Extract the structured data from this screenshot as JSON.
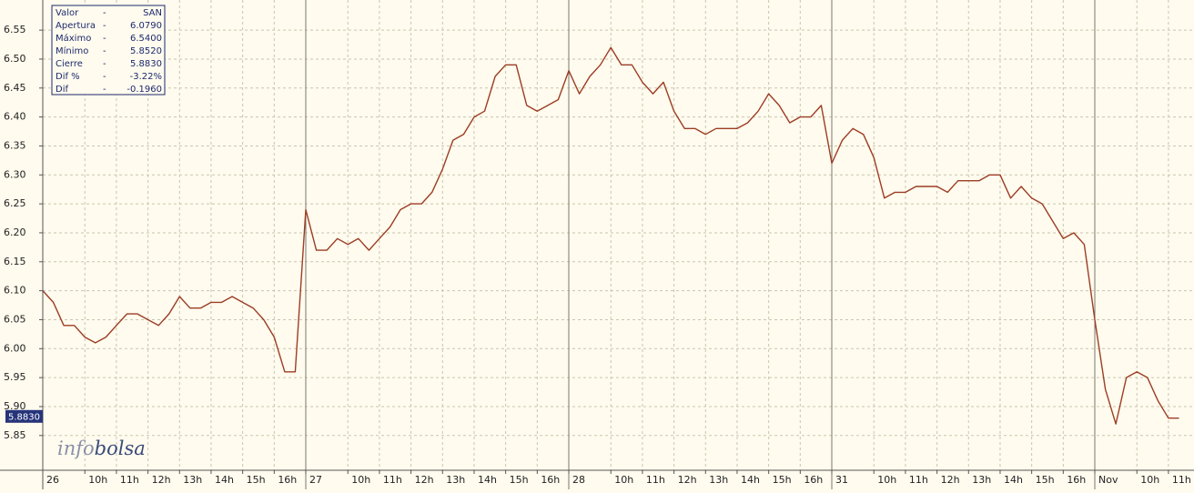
{
  "chart_data": {
    "type": "line",
    "categories": [
      "26",
      null,
      null,
      null,
      "10h",
      null,
      null,
      "11h",
      null,
      null,
      "12h",
      null,
      null,
      "13h",
      null,
      null,
      "14h",
      null,
      null,
      "15h",
      null,
      null,
      "16h",
      null,
      null,
      "27",
      null,
      null,
      null,
      "10h",
      null,
      null,
      "11h",
      null,
      null,
      "12h",
      null,
      null,
      "13h",
      null,
      null,
      "14h",
      null,
      null,
      "15h",
      null,
      null,
      "16h",
      null,
      null,
      "28",
      null,
      null,
      null,
      "10h",
      null,
      null,
      "11h",
      null,
      null,
      "12h",
      null,
      null,
      "13h",
      null,
      null,
      "14h",
      null,
      null,
      "15h",
      null,
      null,
      "16h",
      null,
      null,
      "31",
      null,
      null,
      null,
      "10h",
      null,
      null,
      "11h",
      null,
      null,
      "12h",
      null,
      null,
      "13h",
      null,
      null,
      "14h",
      null,
      null,
      "15h",
      null,
      null,
      "16h",
      null,
      null,
      "Nov",
      null,
      null,
      null,
      "10h",
      null,
      null,
      "11h",
      null
    ],
    "values": [
      6.1,
      6.08,
      6.04,
      6.04,
      6.02,
      6.01,
      6.02,
      6.04,
      6.06,
      6.06,
      6.05,
      6.04,
      6.06,
      6.09,
      6.07,
      6.07,
      6.08,
      6.08,
      6.09,
      6.08,
      6.07,
      6.05,
      6.02,
      5.96,
      5.96,
      6.24,
      6.17,
      6.17,
      6.19,
      6.18,
      6.19,
      6.17,
      6.19,
      6.21,
      6.24,
      6.25,
      6.25,
      6.27,
      6.31,
      6.36,
      6.37,
      6.4,
      6.41,
      6.47,
      6.49,
      6.49,
      6.42,
      6.41,
      6.42,
      6.43,
      6.48,
      6.44,
      6.47,
      6.49,
      6.52,
      6.49,
      6.49,
      6.46,
      6.44,
      6.46,
      6.41,
      6.38,
      6.38,
      6.37,
      6.38,
      6.38,
      6.38,
      6.39,
      6.41,
      6.44,
      6.42,
      6.39,
      6.4,
      6.4,
      6.42,
      6.32,
      6.36,
      6.38,
      6.37,
      6.33,
      6.26,
      6.27,
      6.27,
      6.28,
      6.28,
      6.28,
      6.27,
      6.29,
      6.29,
      6.29,
      6.3,
      6.3,
      6.26,
      6.28,
      6.26,
      6.25,
      6.22,
      6.19,
      6.2,
      6.18,
      6.05,
      5.93,
      5.87,
      5.95,
      5.96,
      5.95,
      5.91,
      5.88,
      5.88
    ],
    "color": "#9c3d24",
    "ylim": [
      5.79,
      6.602
    ],
    "yticks": [
      5.85,
      {
        "value": 5.9,
        "label": "5.90"
      },
      5.95,
      {
        "value": 6.0,
        "label": "6.00"
      },
      6.05,
      {
        "value": 6.1,
        "label": "6.10"
      },
      6.15,
      {
        "value": 6.2,
        "label": "6.20"
      },
      6.25,
      {
        "value": 6.3,
        "label": "6.30"
      },
      6.35,
      {
        "value": 6.4,
        "label": "6.40"
      },
      6.45,
      {
        "value": 6.5,
        "label": "6.50"
      },
      6.55
    ],
    "grid": true,
    "last_price": {
      "value": 5.883,
      "label": "5.8830"
    },
    "info_table": [
      [
        "Valor",
        "-",
        "SAN"
      ],
      [
        "Apertura",
        "-",
        "6.0790"
      ],
      [
        "Máximo",
        "-",
        "6.5400"
      ],
      [
        "Mínimo",
        "-",
        "5.8520"
      ],
      [
        "Cierre",
        "-",
        "5.8830"
      ],
      [
        "Dif %",
        "-",
        "-3.22%"
      ],
      [
        "Dif",
        "-",
        "-0.1960"
      ]
    ],
    "watermark": [
      "info",
      "bolsa"
    ]
  }
}
